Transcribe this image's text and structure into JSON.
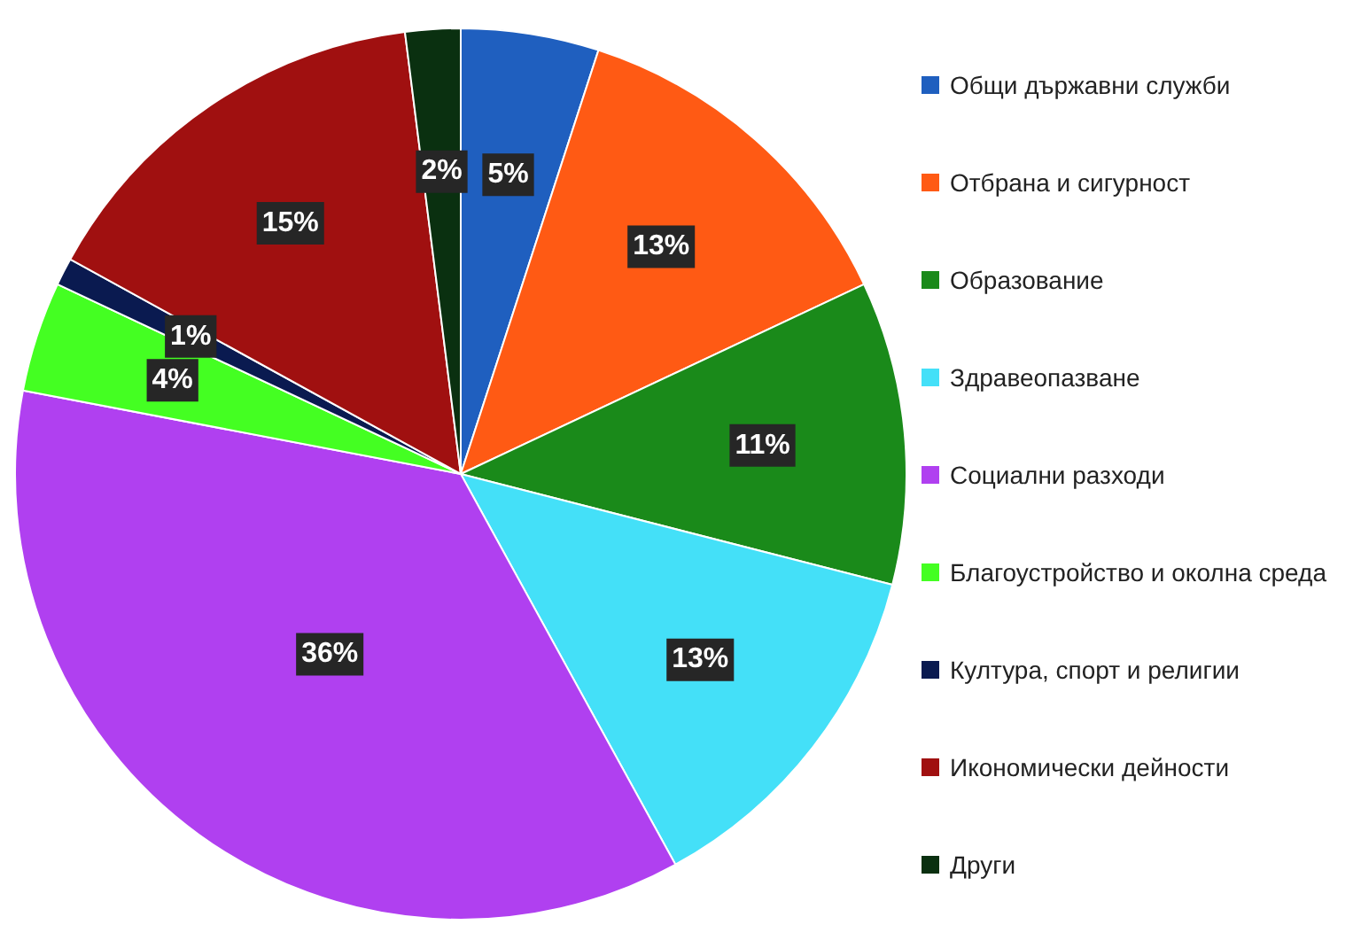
{
  "chart_data": {
    "type": "pie",
    "categories": [
      "Общи държавни служби",
      "Отбрана и сигурност",
      "Образование",
      "Здравеопазване",
      "Социални разходи",
      "Благоустройство и околна среда",
      "Култура, спорт и религии",
      "Икономически дейности",
      "Други"
    ],
    "values": [
      5,
      13,
      11,
      13,
      36,
      4,
      1,
      15,
      2
    ],
    "value_labels": [
      "5%",
      "13%",
      "11%",
      "13%",
      "36%",
      "4%",
      "1%",
      "15%",
      "2%"
    ],
    "colors": [
      "#1f5fbf",
      "#ff5a14",
      "#1a8a1a",
      "#44e0f8",
      "#b040f0",
      "#44ff22",
      "#0a1a50",
      "#a01010",
      "#0a3010"
    ],
    "legend": "right"
  }
}
